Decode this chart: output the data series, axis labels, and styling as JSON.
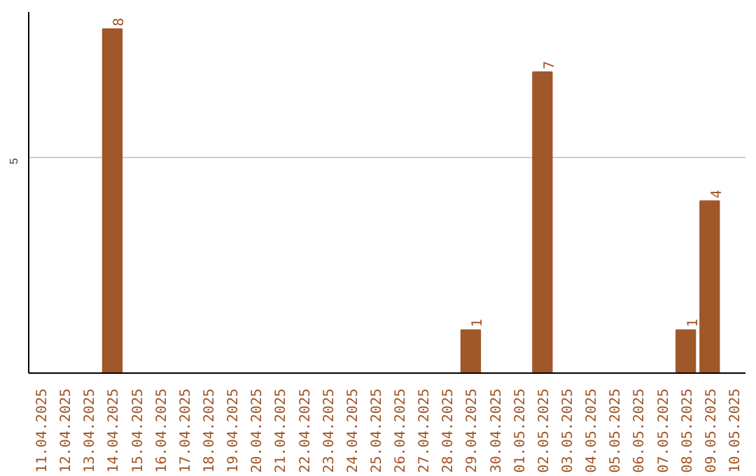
{
  "chart_data": {
    "type": "bar",
    "categories": [
      "11.04.2025",
      "12.04.2025",
      "13.04.2025",
      "14.04.2025",
      "15.04.2025",
      "16.04.2025",
      "17.04.2025",
      "18.04.2025",
      "19.04.2025",
      "20.04.2025",
      "21.04.2025",
      "22.04.2025",
      "23.04.2025",
      "24.04.2025",
      "25.04.2025",
      "26.04.2025",
      "27.04.2025",
      "28.04.2025",
      "29.04.2025",
      "30.04.2025",
      "01.05.2025",
      "02.05.2025",
      "03.05.2025",
      "04.05.2025",
      "05.05.2025",
      "06.05.2025",
      "07.05.2025",
      "08.05.2025",
      "09.05.2025",
      "10.05.2025"
    ],
    "values": [
      0,
      0,
      0,
      8,
      0,
      0,
      0,
      0,
      0,
      0,
      0,
      0,
      0,
      0,
      0,
      0,
      0,
      0,
      1,
      0,
      0,
      7,
      0,
      0,
      0,
      0,
      0,
      1,
      4,
      0
    ],
    "value_labels": [
      null,
      null,
      null,
      "8",
      null,
      null,
      null,
      null,
      null,
      null,
      null,
      null,
      null,
      null,
      null,
      null,
      null,
      null,
      "1",
      null,
      null,
      "7",
      null,
      null,
      null,
      null,
      null,
      "1",
      "4",
      null
    ],
    "color": "#a0572a",
    "ylim": [
      0,
      8.4
    ],
    "yticks": [
      5
    ],
    "grid": "y"
  }
}
